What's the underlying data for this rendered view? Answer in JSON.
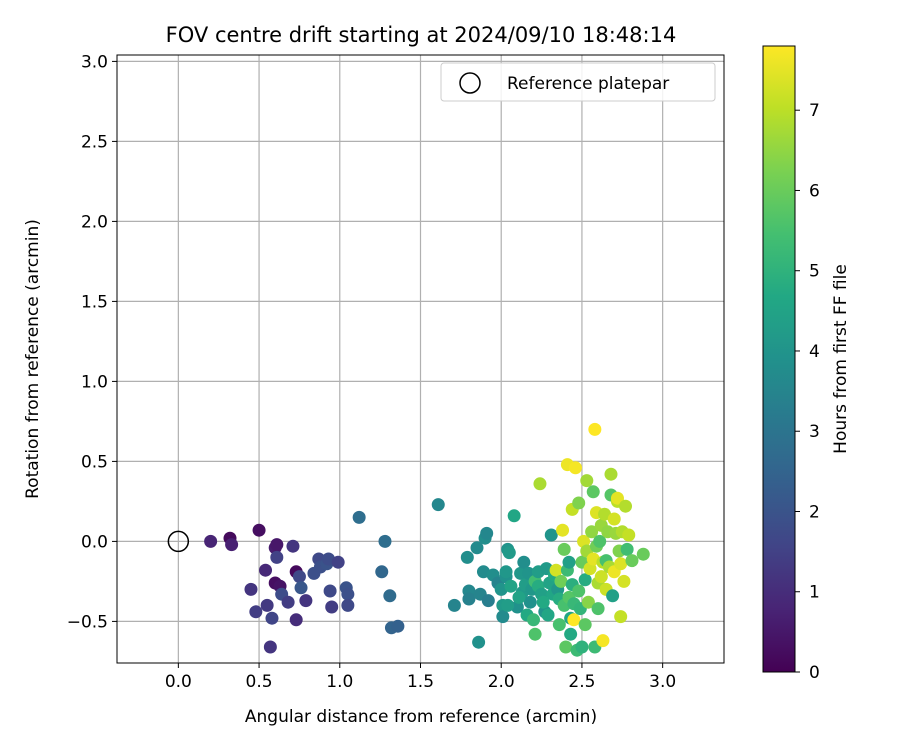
{
  "chart_data": {
    "type": "scatter",
    "title": "FOV centre drift starting at 2024/09/10 18:48:14",
    "xlabel": "Angular distance from reference (arcmin)",
    "ylabel": "Rotation from reference (arcmin)",
    "xlim": [
      -0.38,
      3.38
    ],
    "ylim": [
      -0.76,
      3.04
    ],
    "xticks": [
      0.0,
      0.5,
      1.0,
      1.5,
      2.0,
      2.5,
      3.0
    ],
    "xtick_labels": [
      "0.0",
      "0.5",
      "1.0",
      "1.5",
      "2.0",
      "2.5",
      "3.0"
    ],
    "yticks": [
      -0.5,
      0.0,
      0.5,
      1.0,
      1.5,
      2.0,
      2.5,
      3.0
    ],
    "ytick_labels": [
      "−0.5",
      "0.0",
      "0.5",
      "1.0",
      "1.5",
      "2.0",
      "2.5",
      "3.0"
    ],
    "grid": true,
    "legend": {
      "position": "top-right",
      "entries": [
        {
          "label": "Reference platepar",
          "marker": "open-circle"
        }
      ]
    },
    "reference_point": {
      "x": 0.0,
      "y": 0.0
    },
    "colorbar": {
      "label": "Hours from first FF file",
      "min": 0,
      "max": 7.8,
      "colormap": "viridis",
      "ticks": [
        0,
        1,
        2,
        3,
        4,
        5,
        6,
        7
      ],
      "tick_labels": [
        "0",
        "1",
        "2",
        "3",
        "4",
        "5",
        "6",
        "7"
      ]
    },
    "points_columns": [
      "x_arcmin",
      "y_arcmin",
      "hours"
    ],
    "points": [
      [
        0.2,
        0.0,
        0.8
      ],
      [
        0.32,
        0.02,
        0.2
      ],
      [
        0.33,
        -0.02,
        0.7
      ],
      [
        0.5,
        0.07,
        0.3
      ],
      [
        0.45,
        -0.3,
        1.2
      ],
      [
        0.48,
        -0.44,
        1.4
      ],
      [
        0.54,
        -0.18,
        0.9
      ],
      [
        0.55,
        -0.4,
        1.3
      ],
      [
        0.57,
        -0.66,
        1.2
      ],
      [
        0.58,
        -0.48,
        1.6
      ],
      [
        0.6,
        -0.26,
        0.3
      ],
      [
        0.6,
        -0.04,
        0.6
      ],
      [
        0.61,
        -0.02,
        0.5
      ],
      [
        0.61,
        -0.1,
        1.5
      ],
      [
        0.63,
        -0.28,
        0.4
      ],
      [
        0.64,
        -0.33,
        1.8
      ],
      [
        0.68,
        -0.38,
        1.4
      ],
      [
        0.71,
        -0.03,
        1.2
      ],
      [
        0.73,
        -0.49,
        1.0
      ],
      [
        0.73,
        -0.19,
        0.2
      ],
      [
        0.75,
        -0.22,
        1.7
      ],
      [
        0.76,
        -0.29,
        2.1
      ],
      [
        0.79,
        -0.37,
        1.2
      ],
      [
        0.84,
        -0.2,
        1.9
      ],
      [
        0.87,
        -0.11,
        1.7
      ],
      [
        0.88,
        -0.16,
        1.9
      ],
      [
        0.92,
        -0.14,
        2.0
      ],
      [
        0.93,
        -0.11,
        1.8
      ],
      [
        0.94,
        -0.31,
        1.7
      ],
      [
        0.95,
        -0.41,
        1.4
      ],
      [
        0.99,
        -0.13,
        1.5
      ],
      [
        1.04,
        -0.29,
        2.0
      ],
      [
        1.05,
        -0.33,
        1.9
      ],
      [
        1.05,
        -0.4,
        1.7
      ],
      [
        1.12,
        0.15,
        2.8
      ],
      [
        1.26,
        -0.19,
        2.6
      ],
      [
        1.28,
        0.0,
        2.8
      ],
      [
        1.31,
        -0.34,
        2.7
      ],
      [
        1.32,
        -0.54,
        2.5
      ],
      [
        1.36,
        -0.53,
        2.4
      ],
      [
        1.61,
        0.23,
        3.6
      ],
      [
        1.71,
        -0.4,
        3.5
      ],
      [
        1.79,
        -0.1,
        3.8
      ],
      [
        1.8,
        -0.31,
        3.6
      ],
      [
        1.8,
        -0.36,
        3.4
      ],
      [
        1.85,
        -0.04,
        3.7
      ],
      [
        1.86,
        -0.63,
        3.9
      ],
      [
        1.87,
        -0.33,
        3.5
      ],
      [
        1.89,
        -0.19,
        3.7
      ],
      [
        1.9,
        0.02,
        3.8
      ],
      [
        1.91,
        0.05,
        3.6
      ],
      [
        1.92,
        -0.37,
        3.3
      ],
      [
        1.95,
        -0.21,
        3.8
      ],
      [
        1.98,
        -0.26,
        3.5
      ],
      [
        2.0,
        -0.3,
        4.0
      ],
      [
        2.01,
        -0.4,
        4.2
      ],
      [
        2.01,
        -0.47,
        3.7
      ],
      [
        2.03,
        -0.22,
        3.9
      ],
      [
        2.03,
        -0.19,
        4.1
      ],
      [
        2.04,
        -0.05,
        4.0
      ],
      [
        2.05,
        -0.07,
        4.2
      ],
      [
        2.06,
        -0.28,
        4.5
      ],
      [
        2.08,
        0.16,
        4.6
      ],
      [
        2.1,
        -0.41,
        3.9
      ],
      [
        2.12,
        -0.2,
        4.1
      ],
      [
        2.13,
        -0.32,
        4.2
      ],
      [
        2.14,
        -0.13,
        3.8
      ],
      [
        2.15,
        -0.27,
        4.3
      ],
      [
        2.16,
        -0.46,
        4.7
      ],
      [
        2.17,
        -0.2,
        4.0
      ],
      [
        2.18,
        -0.38,
        3.9
      ],
      [
        2.19,
        -0.3,
        4.1
      ],
      [
        2.2,
        -0.49,
        5.2
      ],
      [
        2.21,
        -0.25,
        5.4
      ],
      [
        2.21,
        -0.58,
        5.6
      ],
      [
        2.23,
        -0.28,
        4.8
      ],
      [
        2.23,
        -0.19,
        4.3
      ],
      [
        2.24,
        0.36,
        6.8
      ],
      [
        2.25,
        -0.33,
        4.4
      ],
      [
        2.27,
        -0.44,
        4.0
      ],
      [
        2.28,
        -0.17,
        4.2
      ],
      [
        2.29,
        -0.46,
        4.6
      ],
      [
        2.3,
        -0.26,
        4.5
      ],
      [
        2.31,
        0.04,
        4.0
      ],
      [
        2.32,
        -0.33,
        4.6
      ],
      [
        2.33,
        -0.21,
        4.7
      ],
      [
        2.34,
        -0.18,
        7.3
      ],
      [
        2.35,
        -0.3,
        4.1
      ],
      [
        2.36,
        -0.36,
        4.8
      ],
      [
        2.37,
        -0.25,
        6.1
      ],
      [
        2.38,
        0.07,
        7.5
      ],
      [
        2.39,
        -0.4,
        5.5
      ],
      [
        2.39,
        -0.05,
        6.0
      ],
      [
        2.4,
        -0.66,
        5.8
      ],
      [
        2.41,
        0.48,
        7.6
      ],
      [
        2.41,
        -0.18,
        5.3
      ],
      [
        2.42,
        -0.35,
        5.7
      ],
      [
        2.42,
        -0.13,
        4.4
      ],
      [
        2.43,
        -0.48,
        4.6
      ],
      [
        2.43,
        -0.58,
        4.7
      ],
      [
        2.44,
        0.2,
        7.1
      ],
      [
        2.44,
        -0.27,
        4.9
      ],
      [
        2.45,
        -0.49,
        7.8
      ],
      [
        2.45,
        -0.39,
        5.2
      ],
      [
        2.46,
        0.46,
        7.7
      ],
      [
        2.47,
        -0.68,
        5.3
      ],
      [
        2.48,
        0.24,
        6.3
      ],
      [
        2.48,
        -0.31,
        5.6
      ],
      [
        2.49,
        -0.42,
        5.1
      ],
      [
        2.5,
        -0.13,
        6.0
      ],
      [
        2.5,
        -0.66,
        5.0
      ],
      [
        2.51,
        0.0,
        7.4
      ],
      [
        2.52,
        -0.24,
        4.8
      ],
      [
        2.52,
        -0.52,
        5.8
      ],
      [
        2.53,
        -0.06,
        6.7
      ],
      [
        2.53,
        0.38,
        6.7
      ],
      [
        2.54,
        -0.38,
        6.4
      ],
      [
        2.55,
        -0.17,
        7.3
      ],
      [
        2.56,
        0.06,
        6.5
      ],
      [
        2.57,
        0.31,
        5.8
      ],
      [
        2.57,
        -0.11,
        7.5
      ],
      [
        2.58,
        0.7,
        7.8
      ],
      [
        2.58,
        -0.66,
        5.3
      ],
      [
        2.59,
        -0.03,
        6.1
      ],
      [
        2.59,
        0.18,
        7.4
      ],
      [
        2.6,
        -0.42,
        5.6
      ],
      [
        2.6,
        -0.26,
        6.8
      ],
      [
        2.61,
        0.0,
        5.6
      ],
      [
        2.62,
        -0.22,
        7.2
      ],
      [
        2.62,
        0.1,
        6.6
      ],
      [
        2.63,
        -0.62,
        7.7
      ],
      [
        2.63,
        -0.13,
        7.0
      ],
      [
        2.64,
        0.17,
        6.9
      ],
      [
        2.65,
        -0.3,
        7.2
      ],
      [
        2.65,
        -0.12,
        5.5
      ],
      [
        2.66,
        0.06,
        6.5
      ],
      [
        2.67,
        -0.16,
        6.8
      ],
      [
        2.68,
        0.42,
        6.8
      ],
      [
        2.68,
        0.29,
        5.7
      ],
      [
        2.69,
        -0.34,
        4.4
      ],
      [
        2.7,
        -0.19,
        7.6
      ],
      [
        2.7,
        0.14,
        7.3
      ],
      [
        2.71,
        0.05,
        6.6
      ],
      [
        2.72,
        0.25,
        7.0
      ],
      [
        2.72,
        0.27,
        7.5
      ],
      [
        2.73,
        -0.06,
        6.3
      ],
      [
        2.74,
        -0.47,
        7.1
      ],
      [
        2.74,
        -0.14,
        7.4
      ],
      [
        2.75,
        0.06,
        6.9
      ],
      [
        2.76,
        -0.25,
        7.3
      ],
      [
        2.77,
        0.22,
        6.9
      ],
      [
        2.78,
        -0.05,
        5.4
      ],
      [
        2.79,
        0.04,
        7.1
      ],
      [
        2.81,
        -0.12,
        6.0
      ],
      [
        2.88,
        -0.08,
        6.0
      ],
      [
        2.04,
        -0.4,
        4.3
      ],
      [
        2.11,
        -0.35,
        4.5
      ],
      [
        2.26,
        -0.38,
        4.7
      ],
      [
        2.36,
        -0.52,
        5.5
      ]
    ]
  }
}
